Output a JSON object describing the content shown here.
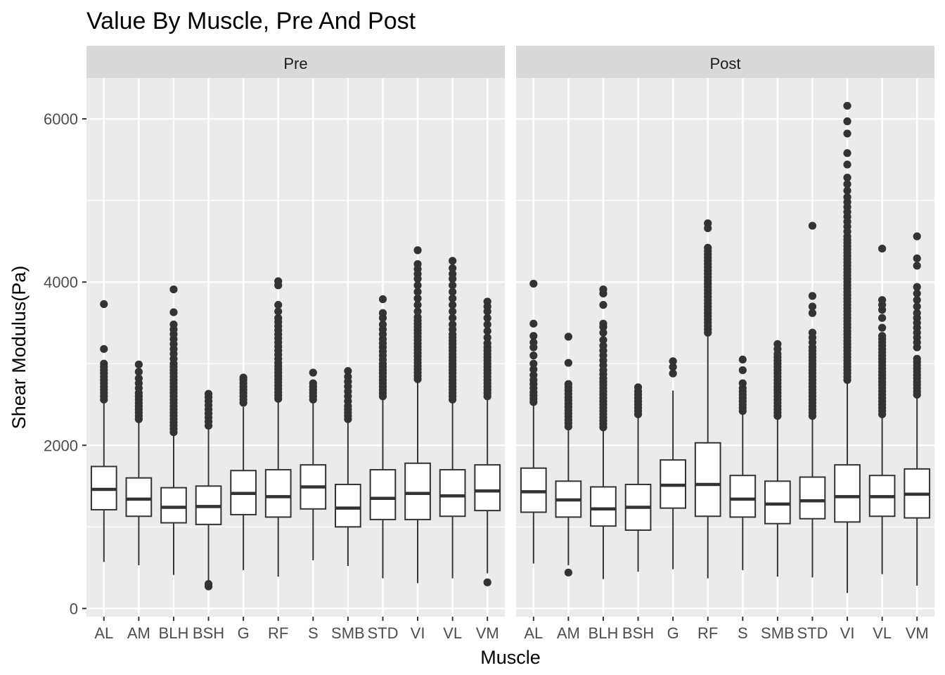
{
  "chart_data": {
    "type": "boxplot",
    "title": "Value By Muscle, Pre And Post",
    "xlabel": "Muscle",
    "ylabel": "Shear Modulus(Pa)",
    "ylim": [
      -100,
      6500
    ],
    "yticks": [
      0,
      2000,
      4000,
      6000
    ],
    "categories": [
      "AL",
      "AM",
      "BLH",
      "BSH",
      "G",
      "RF",
      "S",
      "SMB",
      "STD",
      "VI",
      "VL",
      "VM"
    ],
    "colors": {
      "panel_bg": "#ebebeb",
      "grid": "#ffffff",
      "strip_bg": "#d9d9d9",
      "box_fill": "#ffffff",
      "box_line": "#333333"
    },
    "panels": [
      {
        "label": "Pre",
        "boxes": [
          {
            "category": "AL",
            "low": 570,
            "q1": 1210,
            "median": 1460,
            "q3": 1740,
            "high": 2540,
            "outliers": [
              2560,
              2600,
              2640,
              2680,
              2720,
              2760,
              2800,
              2840,
              2880,
              2920,
              2960,
              3000,
              3180,
              3730
            ]
          },
          {
            "category": "AM",
            "low": 530,
            "q1": 1130,
            "median": 1340,
            "q3": 1600,
            "high": 2300,
            "outliers": [
              2320,
              2360,
              2400,
              2440,
              2480,
              2520,
              2560,
              2600,
              2640,
              2700,
              2760,
              2820,
              2900,
              2990
            ]
          },
          {
            "category": "BLH",
            "low": 410,
            "q1": 1050,
            "median": 1240,
            "q3": 1480,
            "high": 2140,
            "outliers": [
              2160,
              2200,
              2240,
              2280,
              2320,
              2360,
              2400,
              2440,
              2480,
              2520,
              2560,
              2600,
              2640,
              2680,
              2720,
              2760,
              2800,
              2840,
              2880,
              2920,
              2960,
              3000,
              3060,
              3120,
              3180,
              3240,
              3300,
              3360,
              3420,
              3480,
              3630,
              3910
            ]
          },
          {
            "category": "BSH",
            "low": 330,
            "q1": 1030,
            "median": 1250,
            "q3": 1500,
            "high": 2220,
            "outliers": [
              270,
              300,
              2240,
              2290,
              2340,
              2390,
              2440,
              2490,
              2540,
              2590,
              2630
            ]
          },
          {
            "category": "G",
            "low": 470,
            "q1": 1150,
            "median": 1410,
            "q3": 1690,
            "high": 2470,
            "outliers": [
              2520,
              2560,
              2600,
              2640,
              2680,
              2720,
              2760,
              2800,
              2830
            ]
          },
          {
            "category": "RF",
            "low": 390,
            "q1": 1120,
            "median": 1370,
            "q3": 1700,
            "high": 2550,
            "outliers": [
              2570,
              2610,
              2650,
              2690,
              2730,
              2770,
              2810,
              2850,
              2890,
              2930,
              2970,
              3010,
              3060,
              3110,
              3160,
              3210,
              3260,
              3310,
              3360,
              3410,
              3460,
              3510,
              3560,
              3640,
              3720,
              3960,
              4010
            ]
          },
          {
            "category": "S",
            "low": 590,
            "q1": 1220,
            "median": 1490,
            "q3": 1760,
            "high": 2540,
            "outliers": [
              2560,
              2600,
              2640,
              2680,
              2720,
              2760,
              2890
            ]
          },
          {
            "category": "SMB",
            "low": 520,
            "q1": 1000,
            "median": 1230,
            "q3": 1520,
            "high": 2300,
            "outliers": [
              2320,
              2360,
              2400,
              2440,
              2480,
              2540,
              2600,
              2660,
              2720,
              2780,
              2840,
              2910
            ]
          },
          {
            "category": "STD",
            "low": 370,
            "q1": 1090,
            "median": 1350,
            "q3": 1700,
            "high": 2580,
            "outliers": [
              2600,
              2640,
              2680,
              2720,
              2760,
              2800,
              2840,
              2880,
              2920,
              2960,
              3000,
              3050,
              3100,
              3150,
              3200,
              3250,
              3300,
              3360,
              3420,
              3480,
              3560,
              3620,
              3790
            ]
          },
          {
            "category": "VI",
            "low": 310,
            "q1": 1090,
            "median": 1410,
            "q3": 1780,
            "high": 2790,
            "outliers": [
              2810,
              2850,
              2890,
              2930,
              2970,
              3010,
              3050,
              3090,
              3130,
              3170,
              3210,
              3250,
              3290,
              3330,
              3370,
              3410,
              3450,
              3490,
              3530,
              3570,
              3640,
              3720,
              3800,
              3880,
              3960,
              4040,
              4100,
              4160,
              4220,
              4390
            ]
          },
          {
            "category": "VL",
            "low": 370,
            "q1": 1130,
            "median": 1380,
            "q3": 1700,
            "high": 2540,
            "outliers": [
              2560,
              2600,
              2640,
              2680,
              2720,
              2760,
              2800,
              2840,
              2880,
              2920,
              2960,
              3000,
              3040,
              3080,
              3120,
              3160,
              3200,
              3240,
              3280,
              3320,
              3360,
              3420,
              3480,
              3560,
              3640,
              3720,
              3800,
              3880,
              3960,
              4040,
              4100,
              4170,
              4260
            ]
          },
          {
            "category": "VM",
            "low": 430,
            "q1": 1200,
            "median": 1440,
            "q3": 1760,
            "high": 2580,
            "outliers": [
              320,
              2600,
              2640,
              2680,
              2720,
              2760,
              2800,
              2840,
              2880,
              2920,
              2960,
              3000,
              3040,
              3080,
              3120,
              3160,
              3200,
              3250,
              3320,
              3400,
              3480,
              3560,
              3640,
              3700,
              3760
            ]
          }
        ]
      },
      {
        "label": "Post",
        "boxes": [
          {
            "category": "AL",
            "low": 550,
            "q1": 1180,
            "median": 1430,
            "q3": 1720,
            "high": 2510,
            "outliers": [
              2530,
              2570,
              2610,
              2650,
              2700,
              2750,
              2800,
              2860,
              2930,
              3000,
              3100,
              3200,
              3260,
              3340,
              3490,
              3980
            ]
          },
          {
            "category": "AM",
            "low": 530,
            "q1": 1120,
            "median": 1330,
            "q3": 1560,
            "high": 2210,
            "outliers": [
              440,
              2230,
              2270,
              2310,
              2350,
              2390,
              2430,
              2470,
              2510,
              2550,
              2590,
              2630,
              2670,
              2710,
              2750,
              3010,
              3330
            ]
          },
          {
            "category": "BLH",
            "low": 360,
            "q1": 1010,
            "median": 1220,
            "q3": 1490,
            "high": 2200,
            "outliers": [
              2220,
              2260,
              2300,
              2340,
              2380,
              2420,
              2460,
              2500,
              2540,
              2580,
              2620,
              2660,
              2700,
              2740,
              2780,
              2820,
              2870,
              2920,
              2980,
              3040,
              3100,
              3160,
              3220,
              3290,
              3380,
              3450,
              3490,
              3720,
              3860,
              3910
            ]
          },
          {
            "category": "BSH",
            "low": 450,
            "q1": 960,
            "median": 1240,
            "q3": 1520,
            "high": 2360,
            "outliers": [
              2380,
              2420,
              2460,
              2500,
              2540,
              2580,
              2620,
              2660,
              2710
            ]
          },
          {
            "category": "G",
            "low": 480,
            "q1": 1230,
            "median": 1510,
            "q3": 1820,
            "high": 2670,
            "outliers": [
              2880,
              2960,
              3030
            ]
          },
          {
            "category": "RF",
            "low": 370,
            "q1": 1130,
            "median": 1520,
            "q3": 2030,
            "high": 3360,
            "outliers": [
              3380,
              3420,
              3460,
              3500,
              3540,
              3580,
              3620,
              3660,
              3700,
              3740,
              3780,
              3820,
              3860,
              3900,
              3940,
              3980,
              4020,
              4060,
              4100,
              4140,
              4180,
              4220,
              4260,
              4300,
              4340,
              4380,
              4420,
              4660,
              4720
            ]
          },
          {
            "category": "S",
            "low": 470,
            "q1": 1120,
            "median": 1340,
            "q3": 1630,
            "high": 2400,
            "outliers": [
              2420,
              2460,
              2500,
              2540,
              2580,
              2620,
              2660,
              2700,
              2760,
              2920,
              3050
            ]
          },
          {
            "category": "SMB",
            "low": 390,
            "q1": 1040,
            "median": 1280,
            "q3": 1560,
            "high": 2340,
            "outliers": [
              2360,
              2400,
              2440,
              2480,
              2520,
              2560,
              2600,
              2640,
              2680,
              2720,
              2760,
              2800,
              2840,
              2880,
              2920,
              2960,
              3000,
              3040,
              3080,
              3120,
              3180,
              3240
            ]
          },
          {
            "category": "STD",
            "low": 380,
            "q1": 1100,
            "median": 1320,
            "q3": 1610,
            "high": 2340,
            "outliers": [
              2360,
              2400,
              2440,
              2480,
              2520,
              2560,
              2600,
              2640,
              2680,
              2720,
              2760,
              2800,
              2840,
              2880,
              2920,
              2960,
              3000,
              3040,
              3080,
              3120,
              3160,
              3200,
              3260,
              3320,
              3380,
              3620,
              3700,
              3830,
              4690
            ]
          },
          {
            "category": "VI",
            "low": 190,
            "q1": 1060,
            "median": 1370,
            "q3": 1760,
            "high": 2780,
            "outliers": [
              2800,
              2840,
              2880,
              2920,
              2960,
              3000,
              3040,
              3080,
              3120,
              3160,
              3200,
              3240,
              3280,
              3320,
              3360,
              3400,
              3440,
              3480,
              3520,
              3560,
              3600,
              3640,
              3680,
              3720,
              3760,
              3800,
              3840,
              3880,
              3920,
              3960,
              4000,
              4040,
              4080,
              4120,
              4160,
              4200,
              4240,
              4280,
              4320,
              4360,
              4400,
              4440,
              4480,
              4520,
              4560,
              4620,
              4680,
              4740,
              4800,
              4860,
              4920,
              4980,
              5040,
              5120,
              5200,
              5280,
              5440,
              5580,
              5820,
              5970,
              6160
            ]
          },
          {
            "category": "VL",
            "low": 420,
            "q1": 1130,
            "median": 1370,
            "q3": 1630,
            "high": 2360,
            "outliers": [
              2380,
              2420,
              2460,
              2500,
              2540,
              2580,
              2620,
              2660,
              2700,
              2740,
              2780,
              2820,
              2860,
              2900,
              2940,
              2980,
              3020,
              3060,
              3100,
              3140,
              3180,
              3220,
              3260,
              3300,
              3340,
              3440,
              3560,
              3660,
              3720,
              3780,
              4410
            ]
          },
          {
            "category": "VM",
            "low": 280,
            "q1": 1110,
            "median": 1400,
            "q3": 1710,
            "high": 2600,
            "outliers": [
              2620,
              2660,
              2700,
              2740,
              2780,
              2820,
              2860,
              2900,
              2940,
              2980,
              3020,
              3060,
              3200,
              3260,
              3320,
              3380,
              3440,
              3500,
              3560,
              3620,
              3700,
              3780,
              3860,
              3940,
              4200,
              4290,
              4560
            ]
          }
        ]
      }
    ]
  }
}
